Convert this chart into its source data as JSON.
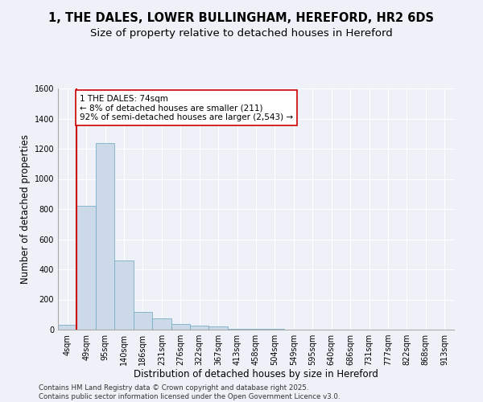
{
  "title1": "1, THE DALES, LOWER BULLINGHAM, HEREFORD, HR2 6DS",
  "title2": "Size of property relative to detached houses in Hereford",
  "xlabel": "Distribution of detached houses by size in Hereford",
  "ylabel": "Number of detached properties",
  "categories": [
    "4sqm",
    "49sqm",
    "95sqm",
    "140sqm",
    "186sqm",
    "231sqm",
    "276sqm",
    "322sqm",
    "367sqm",
    "413sqm",
    "458sqm",
    "504sqm",
    "549sqm",
    "595sqm",
    "640sqm",
    "686sqm",
    "731sqm",
    "777sqm",
    "822sqm",
    "868sqm",
    "913sqm"
  ],
  "bar_values": [
    30,
    820,
    1240,
    460,
    115,
    75,
    40,
    25,
    20,
    8,
    5,
    3,
    2,
    0,
    0,
    0,
    0,
    0,
    0,
    0,
    0
  ],
  "bar_color": "#ccd9e8",
  "bar_edge_color": "#7aaec8",
  "ylim": [
    0,
    1600
  ],
  "yticks": [
    0,
    200,
    400,
    600,
    800,
    1000,
    1200,
    1400,
    1600
  ],
  "vline_x_idx": 1,
  "vline_x_pos": 0.5,
  "vline_color": "#cc0000",
  "annotation_text": "1 THE DALES: 74sqm\n← 8% of detached houses are smaller (211)\n92% of semi-detached houses are larger (2,543) →",
  "annotation_box_color": "#ffffff",
  "annotation_box_edge_color": "#cc0000",
  "footer_text": "Contains HM Land Registry data © Crown copyright and database right 2025.\nContains public sector information licensed under the Open Government Licence v3.0.",
  "bg_color": "#eef2f8",
  "grid_color": "#ffffff",
  "title_fontsize": 10.5,
  "subtitle_fontsize": 9.5,
  "axis_label_fontsize": 8.5,
  "tick_fontsize": 7,
  "annotation_fontsize": 7.5,
  "footer_fontsize": 6.2
}
